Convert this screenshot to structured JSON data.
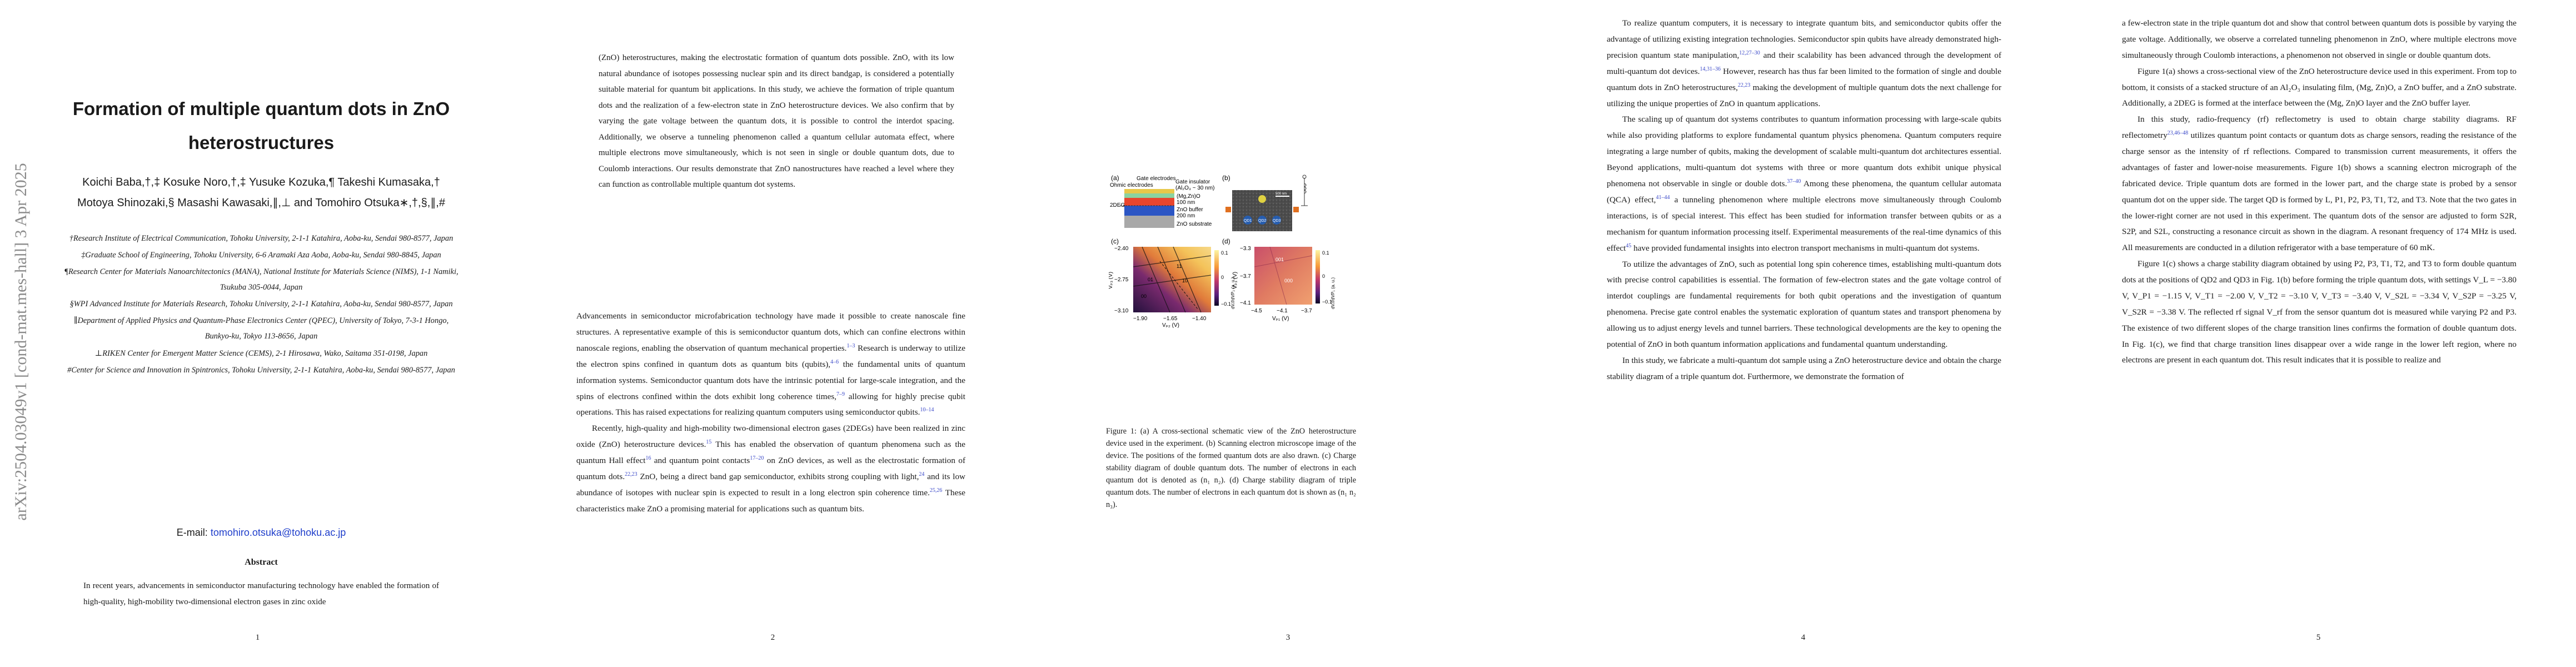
{
  "arxiv_id": "arXiv:2504.03049v1  [cond-mat.mes-hall]  3 Apr 2025",
  "page_numbers": [
    "1",
    "2",
    "3",
    "4",
    "5"
  ],
  "title": "Formation of multiple quantum dots in ZnO heterostructures",
  "authors_line1": "Koichi Baba,†,‡ Kosuke Noro,†,‡ Yusuke Kozuka,¶ Takeshi Kumasaka,†",
  "authors_line2": "Motoya Shinozaki,§ Masashi Kawasaki,∥,⊥ and Tomohiro Otsuka∗,†,§,∥,#",
  "affiliations": [
    "†Research Institute of Electrical Communication, Tohoku University, 2-1-1 Katahira, Aoba-ku, Sendai 980-8577, Japan",
    "‡Graduate School of Engineering, Tohoku University, 6-6 Aramaki Aza Aoba, Aoba-ku, Sendai 980-8845, Japan",
    "¶Research Center for Materials Nanoarchitectonics (MANA), National Institute for Materials Science (NIMS), 1-1 Namiki, Tsukuba 305-0044, Japan",
    "§WPI Advanced Institute for Materials Research, Tohoku University, 2-1-1 Katahira, Aoba-ku, Sendai 980-8577, Japan",
    "∥Department of Applied Physics and Quantum-Phase Electronics Center (QPEC), University of Tokyo, 7-3-1 Hongo, Bunkyo-ku, Tokyo 113-8656, Japan",
    "⊥RIKEN Center for Emergent Matter Science (CEMS), 2-1 Hirosawa, Wako, Saitama 351-0198, Japan",
    "#Center for Science and Innovation in Spintronics, Tohoku University, 2-1-1 Katahira, Aoba-ku, Sendai 980-8577, Japan"
  ],
  "email_label": "E-mail:",
  "email": "tomohiro.otsuka@tohoku.ac.jp",
  "abstract_heading": "Abstract",
  "abstract_p1": "In recent years, advancements in semiconductor manufacturing technology have enabled the formation of high-quality, high-mobility two-dimensional electron gases in zinc oxide",
  "abstract_p2": "(ZnO) heterostructures, making the electrostatic formation of quantum dots possible. ZnO, with its low natural abundance of isotopes possessing nuclear spin and its direct bandgap, is considered a potentially suitable material for quantum bit applications. In this study, we achieve the formation of triple quantum dots and the realization of a few-electron state in ZnO heterostructure devices. We also confirm that by varying the gate voltage between the quantum dots, it is possible to control the interdot spacing. Additionally, we observe a tunneling phenomenon called a quantum cellular automata effect, where multiple electrons move simultaneously, which is not seen in single or double quantum dots, due to Coulomb interactions. Our results demonstrate that ZnO nanostructures have reached a level where they can function as controllable multiple quantum dot systems.",
  "page2_body": [
    "Advancements in semiconductor microfabrication technology have made it possible to create nanoscale fine structures. A representative example of this is semiconductor quantum dots, which can confine electrons within nanoscale regions, enabling the observation of quantum mechanical properties.",
    "Research is underway to utilize the electron spins confined in quantum dots as quantum bits (qubits),",
    "the fundamental units of quantum information systems. Semiconductor quantum dots have the intrinsic potential for large-scale integration, and the spins of electrons confined within the dots exhibit long coherence times,",
    "allowing for highly precise qubit operations. This has raised expectations for realizing quantum computers using semiconductor qubits.",
    "Recently, high-quality and high-mobility two-dimensional electron gases (2DEGs) have been realized in zinc oxide (ZnO) heterostructure devices.",
    "This has enabled the observation of quantum phenomena such as the quantum Hall effect",
    "and quantum point contacts",
    "on ZnO devices, as well as the electrostatic formation of quantum dots.",
    "ZnO, being a direct band gap semiconductor, exhibits strong coupling with light,",
    "and its low abundance of isotopes with nuclear spin is expected to result in a long electron spin coherence time.",
    "These characteristics make ZnO a promising material for applications such as quantum bits."
  ],
  "page2_cites": [
    "1–3",
    "4–6",
    "7–9",
    "10–14",
    "15",
    "16",
    "17–20",
    "21",
    "22,23",
    "24",
    "25,26"
  ],
  "figure": {
    "panel_labels": [
      "(a)",
      "(b)",
      "(c)",
      "(d)"
    ],
    "layer_labels": [
      "Ohmic electrodes",
      "Gate electrodes",
      "Gate insulator",
      "(Al₂O₃ ~ 30 nm)",
      "2DEG",
      "(Mg,Zn)O",
      "100 nm",
      "ZnO buffer",
      "200 nm",
      "ZnO substrate"
    ],
    "dot_labels": [
      "QD1",
      "QD2",
      "QD3"
    ],
    "scale_bar": "500 nm",
    "panel_c": {
      "x_ticks": [
        "−1.90",
        "−1.65",
        "−1.40"
      ],
      "y_ticks": [
        "−2.40",
        "−2.75",
        "−3.10"
      ],
      "xlabel": "Vₚ₂ (V)",
      "ylabel": "Vₚ₃ (V)",
      "cbar_ticks": [
        "0.1",
        "0",
        "−0.1"
      ],
      "cbar_label": "dVᵣf/dVP₂ (a. u.)",
      "state_labels": [
        "00",
        "01",
        "10",
        "11"
      ]
    },
    "panel_d": {
      "x_ticks": [
        "−4.5",
        "−4.1",
        "−3.7"
      ],
      "y_ticks": [
        "−3.3",
        "−3.7",
        "−4.1"
      ],
      "xlabel": "Vₚ₁ (V)",
      "ylabel": "Vₚ₃ (V)",
      "cbar_ticks": [
        "0.1",
        "0",
        "−0.1"
      ],
      "cbar_label": "dVᵣf/dVP₁ (a. u.)",
      "state_labels": [
        "001",
        "000"
      ]
    },
    "caption": "Figure 1: (a) A cross-sectional schematic view of the ZnO heterostructure device used in the experiment. (b) Scanning electron microscope image of the device. The positions of the formed quantum dots are also drawn. (c) Charge stability diagram of double quantum dots. The number of electrons in each quantum dot is denoted as (n₁ n₂). (d) Charge stability diagram of triple quantum dots. The number of electrons in each quantum dot is shown as (n₁ n₂ n₃)."
  },
  "page4_body": [
    "To realize quantum computers, it is necessary to integrate quantum bits, and semiconductor qubits offer the advantage of utilizing existing integration technologies. Semiconductor spin qubits have already demonstrated high-precision quantum state manipulation,",
    "and their scalability has been advanced through the development of multi-quantum dot devices.",
    "However, research has thus far been limited to the formation of single and double quantum dots in ZnO heterostructures,",
    "making the development of multiple quantum dots the next challenge for utilizing the unique properties of ZnO in quantum applications.",
    "The scaling up of quantum dot systems contributes to quantum information processing with large-scale qubits while also providing platforms to explore fundamental quantum physics phenomena. Quantum computers require integrating a large number of qubits, making the development of scalable multi-quantum dot architectures essential. Beyond applications, multi-quantum dot systems with three or more quantum dots exhibit unique physical phenomena not observable in single or double dots.",
    "Among these phenomena, the quantum cellular automata (QCA) effect,",
    "a tunneling phenomenon where multiple electrons move simultaneously through Coulomb interactions, is of special interest. This effect has been studied for information transfer between qubits or as a mechanism for quantum information processing itself. Experimental measurements of the real-time dynamics of this effect",
    "have provided fundamental insights into electron transport mechanisms in multi-quantum dot systems.",
    "To utilize the advantages of ZnO, such as potential long spin coherence times, establishing multi-quantum dots with precise control capabilities is essential. The formation of few-electron states and the gate voltage control of interdot couplings are fundamental requirements for both qubit operations and the investigation of quantum phenomena. Precise gate control enables the systematic exploration of quantum states and transport phenomena by allowing us to adjust energy levels and tunnel barriers. These technological developments are the key to opening the potential of ZnO in both quantum information applications and fundamental quantum understanding.",
    "In this study, we fabricate a multi-quantum dot sample using a ZnO heterostructure device and obtain the charge stability diagram of a triple quantum dot. Furthermore, we demonstrate the formation of"
  ],
  "page4_cites": [
    "12,27–30",
    "14,31–36",
    "22,23",
    "37–40",
    "41–44",
    "45"
  ],
  "page5_body": [
    "a few-electron state in the triple quantum dot and show that control between quantum dots is possible by varying the gate voltage. Additionally, we observe a correlated tunneling phenomenon in ZnO, where multiple electrons move simultaneously through Coulomb interactions, a phenomenon not observed in single or double quantum dots.",
    "Figure 1(a) shows a cross-sectional view of the ZnO heterostructure device used in this experiment. From top to bottom, it consists of a stacked structure of an Al₂O₃ insulating film, (Mg, Zn)O, a ZnO buffer, and a ZnO substrate. Additionally, a 2DEG is formed at the interface between the (Mg, Zn)O layer and the ZnO buffer layer.",
    "In this study, radio-frequency (rf) reflectometry is used to obtain charge stability diagrams. RF reflectometry",
    "utilizes quantum point contacts or quantum dots as charge sensors, reading the resistance of the charge sensor as the intensity of rf reflections. Compared to transmission current measurements, it offers the advantages of faster and lower-noise measurements. Figure 1(b) shows a scanning electron micrograph of the fabricated device. Triple quantum dots are formed in the lower part, and the charge state is probed by a sensor quantum dot on the upper side. The target QD is formed by L, P1, P2, P3, T1, T2, and T3. Note that the two gates in the lower-right corner are not used in this experiment. The quantum dots of the sensor are adjusted to form S2R, S2P, and S2L, constructing a resonance circuit as shown in the diagram. A resonant frequency of 174 MHz is used. All measurements are conducted in a dilution refrigerator with a base temperature of 60 mK.",
    "Figure 1(c) shows a charge stability diagram obtained by using P2, P3, T1, T2, and T3 to form double quantum dots at the positions of QD2 and QD3 in Fig. 1(b) before forming the triple quantum dots, with settings V_L = −3.80 V, V_P1 = −1.15 V, V_T1 = −2.00 V, V_T2 = −3.10 V, V_T3 = −3.40 V, V_S2L = −3.34 V, V_S2P = −3.25 V, V_S2R = −3.38 V. The reflected rf signal V_rf from the sensor quantum dot is measured while varying P2 and P3. The existence of two different slopes of the charge transition lines confirms the formation of double quantum dots. In Fig. 1(c), we find that charge transition lines disappear over a wide range in the lower left region, where no electrons are present in each quantum dot. This result indicates that it is possible to realize and"
  ],
  "page5_cites": [
    "23,46–48"
  ]
}
